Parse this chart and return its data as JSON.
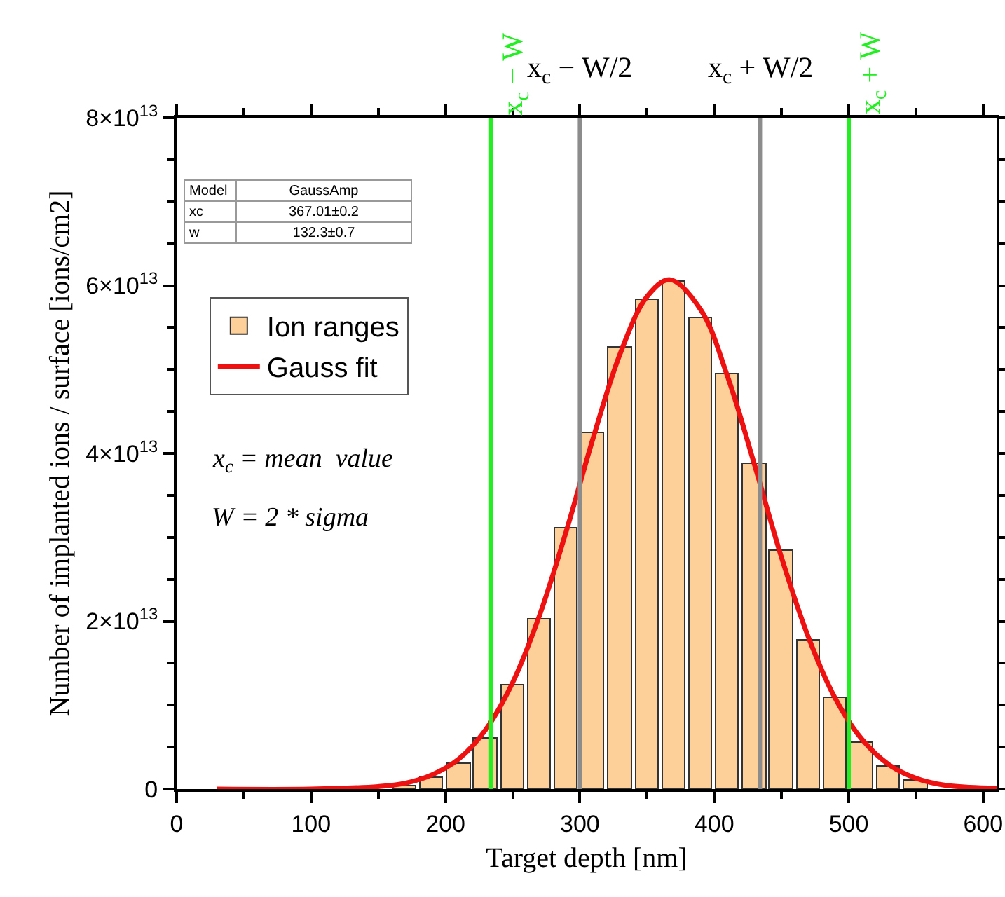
{
  "chart_data": {
    "type": "bar",
    "xlabel": "Target depth [nm]",
    "ylabel": "Number of implanted ions / surface [ions/cm2]",
    "x": [
      170,
      190,
      210,
      230,
      250,
      270,
      290,
      310,
      330,
      350,
      370,
      390,
      410,
      430,
      450,
      470,
      490,
      510,
      530,
      550
    ],
    "series": [
      {
        "name": "Ion ranges",
        "color": "#fdd09a",
        "values": [
          300000000000.0,
          1300000000000.0,
          3000000000000.0,
          6000000000000.0,
          12400000000000.0,
          20200000000000.0,
          31000000000000.0,
          42400000000000.0,
          52600000000000.0,
          58300000000000.0,
          60400000000000.0,
          56100000000000.0,
          49400000000000.0,
          38700000000000.0,
          28400000000000.0,
          17700000000000.0,
          10800000000000.0,
          5500000000000.0,
          2700000000000.0,
          1000000000000.0
        ]
      },
      {
        "name": "Gauss fit",
        "type": "line",
        "color": "#ee1111",
        "line_style": "solid",
        "marker": "none",
        "x": [
          30,
          100,
          150,
          170,
          190,
          210,
          230,
          250,
          270,
          290,
          310,
          330,
          350,
          367,
          390,
          410,
          430,
          450,
          470,
          490,
          510,
          530,
          550,
          570,
          590,
          610
        ],
        "values": [
          0,
          0,
          300000000000.0,
          700000000000.0,
          1700000000000.0,
          3600000000000.0,
          7100000000000.0,
          12700000000000.0,
          20700000000000.0,
          30800000000000.0,
          41900000000000.0,
          51900000000000.0,
          58700000000000.0,
          60700000000000.0,
          57100000000000.0,
          49100000000000.0,
          38600000000000.0,
          27600000000000.0,
          18100000000000.0,
          10800000000000.0,
          5900000000000.0,
          2900000000000.0,
          1300000000000.0,
          500000000000.0,
          200000000000.0,
          100000000000.0
        ]
      }
    ],
    "xlim": [
      0,
      610
    ],
    "xticks": [
      0,
      100,
      200,
      300,
      400,
      500,
      600
    ],
    "ylim": [
      0,
      80000000000000.0
    ],
    "yticks": [
      {
        "value": 0,
        "label": "0"
      },
      {
        "value": 20000000000000.0,
        "label": "2×10$^{13}$"
      },
      {
        "value": 40000000000000.0,
        "label": "4×10$^{13}$"
      },
      {
        "value": 60000000000000.0,
        "label": "6×10$^{13}$"
      },
      {
        "value": 80000000000000.0,
        "label": "8×10$^{13}$"
      }
    ],
    "ref_lines": [
      {
        "axis": "x",
        "value": 234,
        "label": "x$_{c}$ − W",
        "color": "#22ee22",
        "line_style": "solid"
      },
      {
        "axis": "x",
        "value": 300,
        "label": "x$_{c}$ − W/2",
        "color": "#8c8c8c",
        "line_style": "solid"
      },
      {
        "axis": "x",
        "value": 434,
        "label": "x$_{c}$ + W/2",
        "color": "#8c8c8c",
        "line_style": "solid"
      },
      {
        "axis": "x",
        "value": 500,
        "label": "x$_{c}$ + W",
        "color": "#22ee22",
        "line_style": "solid"
      }
    ],
    "annotations": [
      "Model",
      "GaussAmp",
      "xc",
      "367.01±0.2",
      "w",
      "132.3±0.7",
      "x$_{c}$ = mean  value",
      "W = 2 * sigma"
    ],
    "legend": "left",
    "grid": false
  }
}
